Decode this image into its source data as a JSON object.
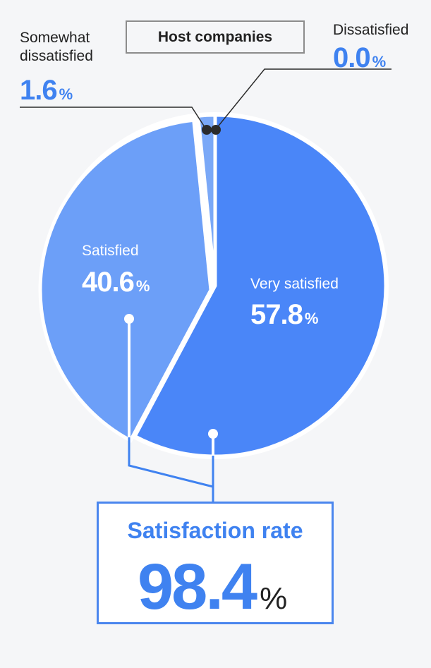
{
  "colors": {
    "very_satisfied": "#4a86f8",
    "satisfied": "#6c9ff8",
    "minor": "#7aa8f7",
    "accent": "#3f82f0",
    "leader": "#2b2b2b"
  },
  "chart_data": {
    "type": "pie",
    "title": "Host companies",
    "unit": "%",
    "slices": [
      {
        "label": "Very satisfied",
        "value": 57.8,
        "display": "57.8"
      },
      {
        "label": "Satisfied",
        "value": 40.6,
        "display": "40.6"
      },
      {
        "label": "Somewhat dissatisfied",
        "value": 1.6,
        "display": "1.6"
      },
      {
        "label": "Dissatisfied",
        "value": 0.0,
        "display": "0.0"
      }
    ],
    "summary": {
      "label": "Satisfaction rate",
      "value": 98.4,
      "display": "98.4"
    }
  },
  "labels": {
    "somewhat_line1": "Somewhat",
    "somewhat_line2": "dissatisfied",
    "pct_symbol": "%"
  }
}
